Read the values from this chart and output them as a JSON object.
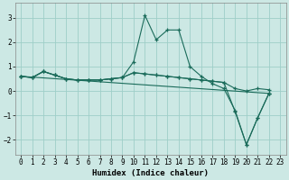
{
  "xlabel": "Humidex (Indice chaleur)",
  "bg_color": "#cce8e4",
  "grid_color": "#9ecec8",
  "line_color": "#1a6b5a",
  "xlim": [
    -0.5,
    23.5
  ],
  "ylim": [
    -2.6,
    3.6
  ],
  "yticks": [
    -2,
    -1,
    0,
    1,
    2,
    3
  ],
  "xticks": [
    0,
    1,
    2,
    3,
    4,
    5,
    6,
    7,
    8,
    9,
    10,
    11,
    12,
    13,
    14,
    15,
    16,
    17,
    18,
    19,
    20,
    21,
    22,
    23
  ],
  "series": [
    {
      "x": [
        0,
        1,
        2,
        3,
        4,
        5,
        6,
        7,
        8,
        9,
        10,
        11,
        12,
        13,
        14,
        15,
        16,
        17,
        18,
        19,
        20,
        21,
        22
      ],
      "y": [
        0.6,
        0.55,
        0.8,
        0.65,
        0.5,
        0.45,
        0.45,
        0.45,
        0.5,
        0.55,
        1.2,
        3.1,
        2.1,
        2.5,
        2.5,
        1.0,
        0.6,
        0.3,
        0.1,
        -0.8,
        -2.2,
        -1.1,
        -0.1
      ]
    },
    {
      "x": [
        0,
        1,
        2,
        3,
        4,
        5,
        6,
        7,
        8,
        9,
        10,
        11,
        12,
        13,
        14,
        15,
        16,
        17,
        18,
        19,
        20,
        21,
        22
      ],
      "y": [
        0.6,
        0.55,
        0.8,
        0.65,
        0.5,
        0.45,
        0.45,
        0.45,
        0.5,
        0.55,
        0.75,
        0.7,
        0.65,
        0.6,
        0.55,
        0.5,
        0.45,
        0.4,
        0.35,
        0.1,
        0.0,
        0.1,
        0.05
      ]
    },
    {
      "x": [
        0,
        1,
        2,
        3,
        4,
        5,
        6,
        7,
        8,
        9,
        10,
        11,
        12,
        13,
        14,
        15,
        16,
        17,
        18,
        19,
        20,
        21,
        22
      ],
      "y": [
        0.6,
        0.55,
        0.8,
        0.65,
        0.5,
        0.45,
        0.45,
        0.45,
        0.5,
        0.55,
        0.75,
        0.7,
        0.65,
        0.6,
        0.55,
        0.5,
        0.45,
        0.4,
        0.35,
        -0.85,
        -2.2,
        -1.1,
        -0.1
      ]
    },
    {
      "x": [
        0,
        22
      ],
      "y": [
        0.6,
        -0.1
      ]
    }
  ],
  "tick_fontsize": 5.5,
  "xlabel_fontsize": 6.5
}
